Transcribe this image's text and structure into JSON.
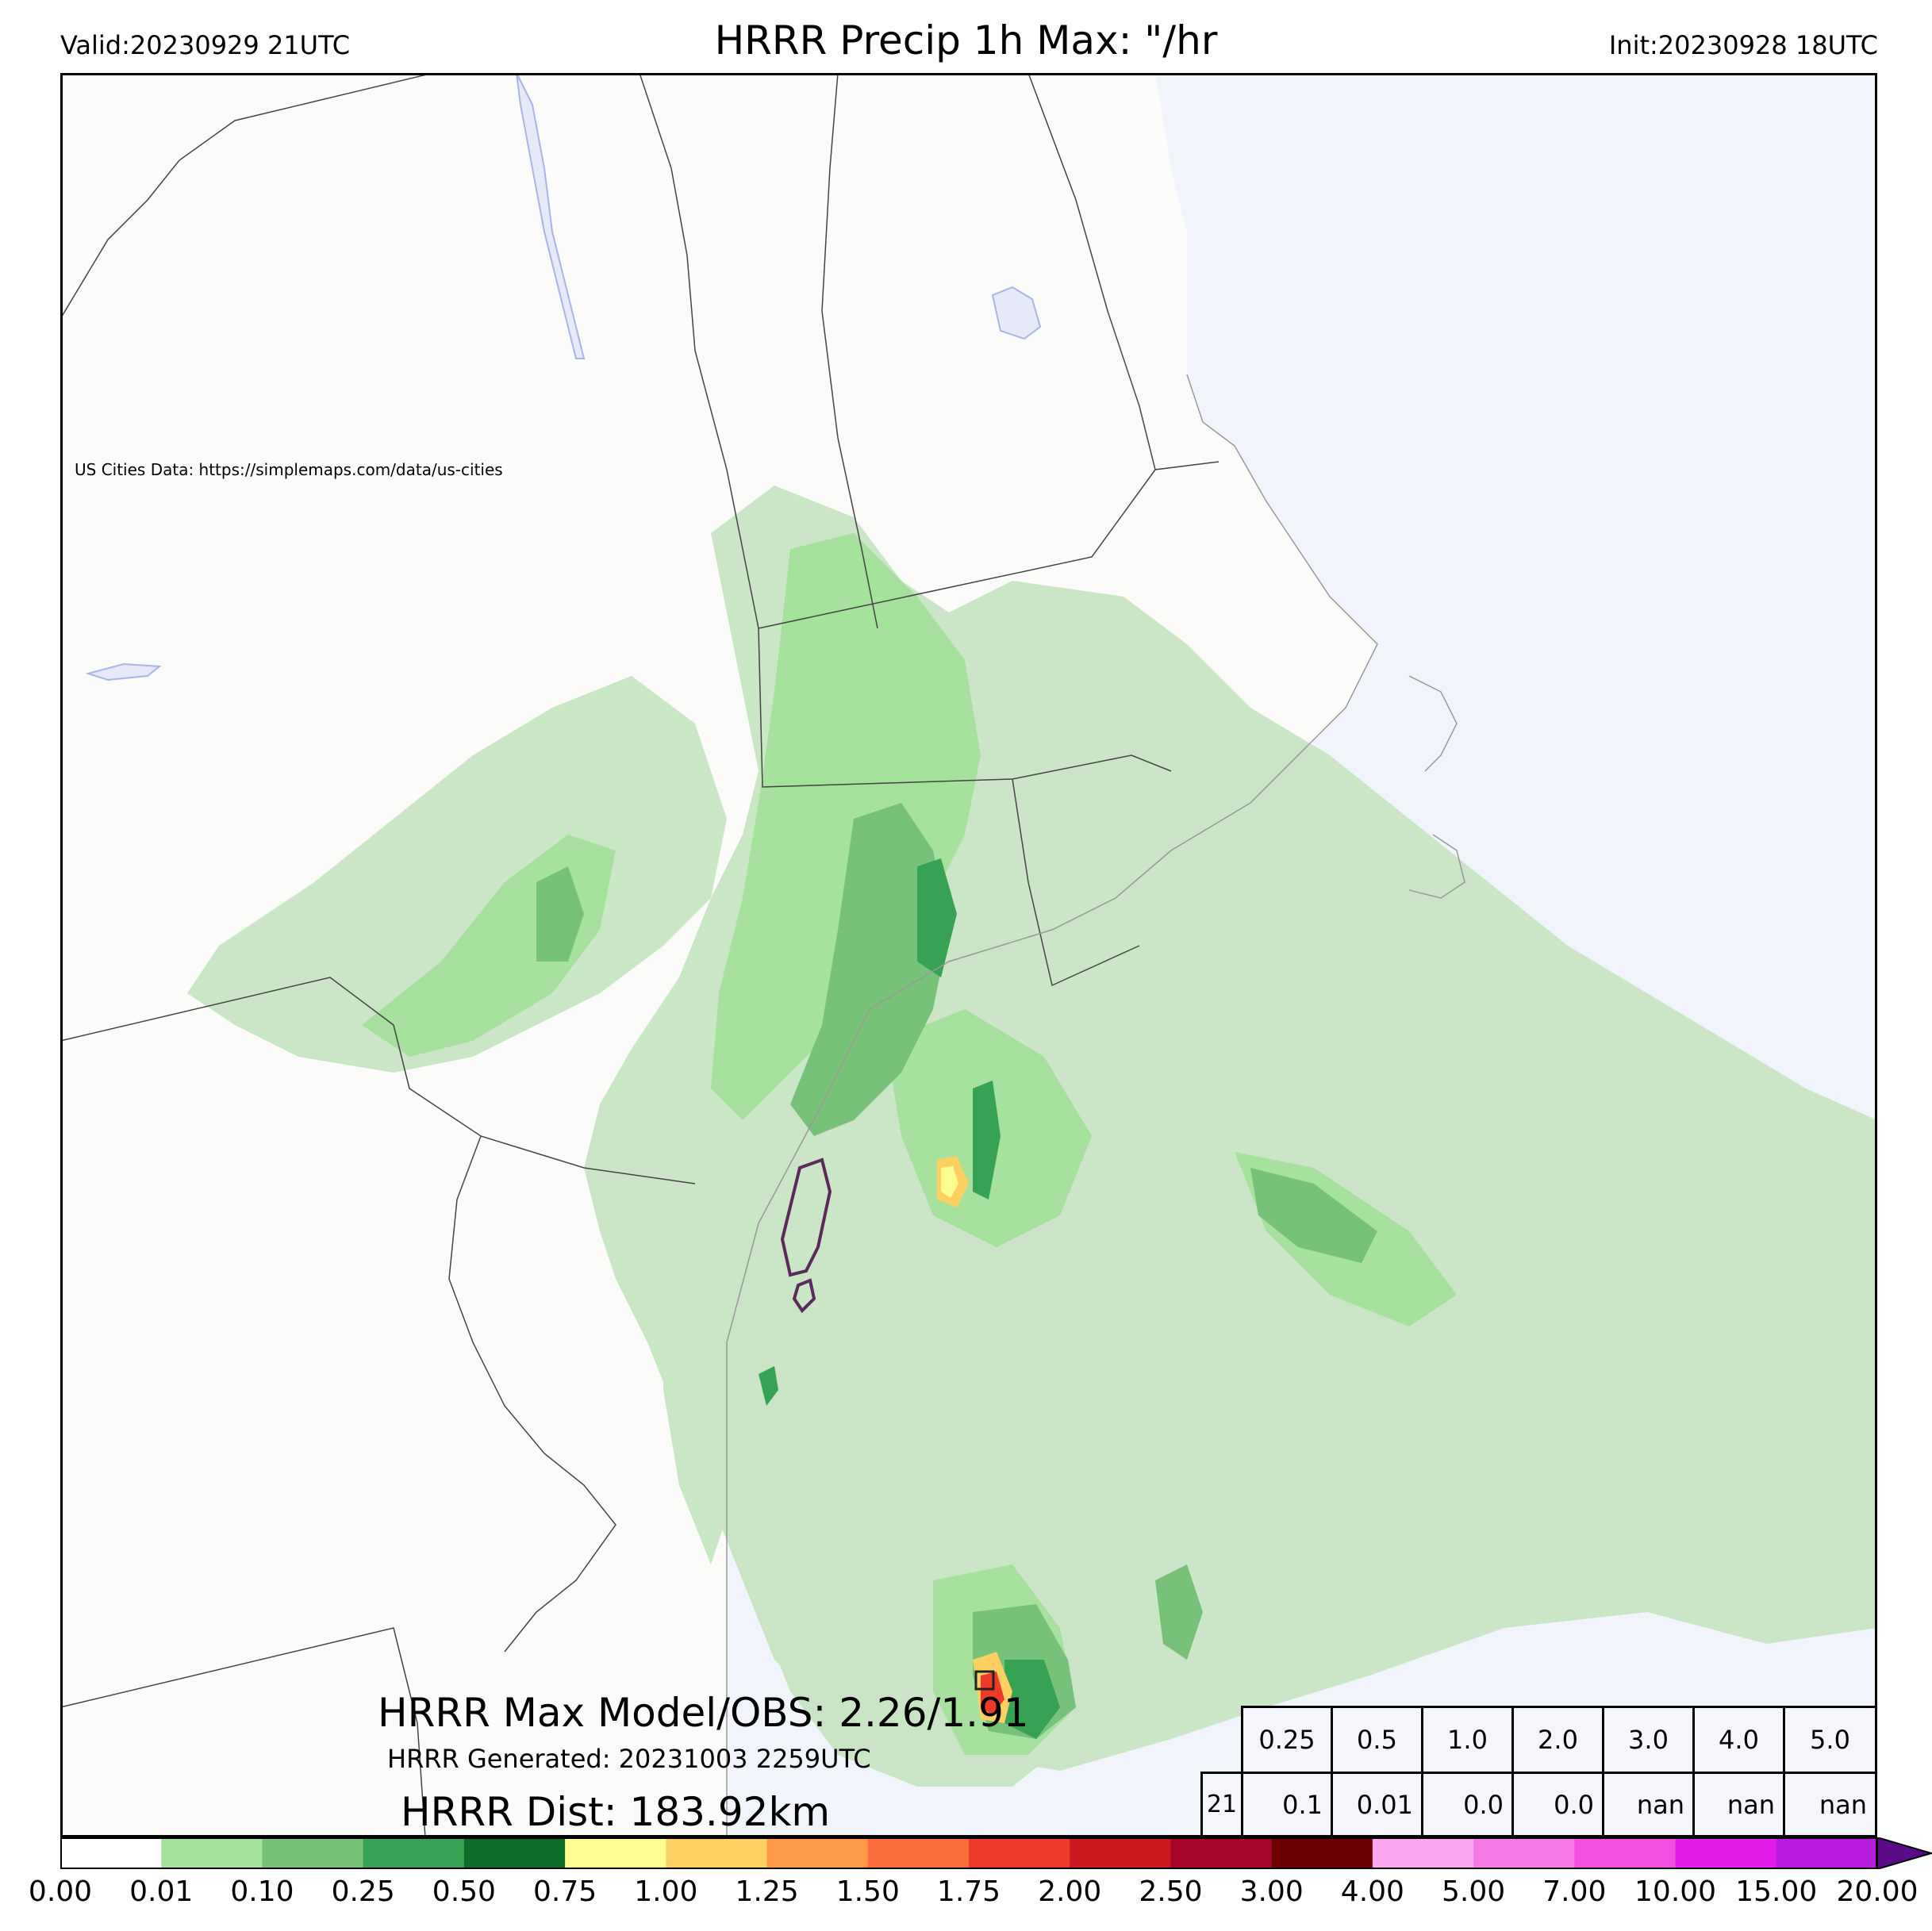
{
  "header": {
    "valid": "Valid:20230929 21UTC",
    "title": "HRRR Precip 1h Max: \"/hr",
    "init": "Init:20230928 18UTC"
  },
  "map": {
    "attribution": "US Cities Data: https://simplemaps.com/data/us-cities",
    "land_color": "#fbfbf9",
    "water_color": "#f1f5fb",
    "lake_color": "#e6eaf8"
  },
  "annotations": {
    "max_model_obs": "HRRR Max Model/OBS: 2.26/1.91",
    "generated": "HRRR Generated: 20231003 2259UTC",
    "distance": "HRRR Dist: 183.92km"
  },
  "stats_table": {
    "thresholds": [
      "0.25",
      "0.5",
      "1.0",
      "2.0",
      "3.0",
      "4.0",
      "5.0"
    ],
    "row_label": "21",
    "values": [
      "0.1",
      "0.01",
      "0.0",
      "0.0",
      "nan",
      "nan",
      "nan"
    ]
  },
  "colorbar": {
    "ticks": [
      "0.00",
      "0.01",
      "0.10",
      "0.25",
      "0.50",
      "0.75",
      "1.00",
      "1.25",
      "1.50",
      "1.75",
      "2.00",
      "2.50",
      "3.00",
      "4.00",
      "5.00",
      "7.00",
      "10.00",
      "15.00",
      "20.00"
    ],
    "colors": [
      "#ffffff",
      "#c7e5c3",
      "#a6e19e",
      "#78c178",
      "#37a253",
      "#0c6d2a",
      "#fefe90",
      "#fed061",
      "#fe9946",
      "#fb6e3c",
      "#ee3a29",
      "#cc1a20",
      "#a50526",
      "#6e0000",
      "#f9a8f0",
      "#f57ae6",
      "#f04fe2",
      "#e21ee8",
      "#b81ce0",
      "#7a04a8"
    ],
    "extend_color": "#5b0a88"
  }
}
